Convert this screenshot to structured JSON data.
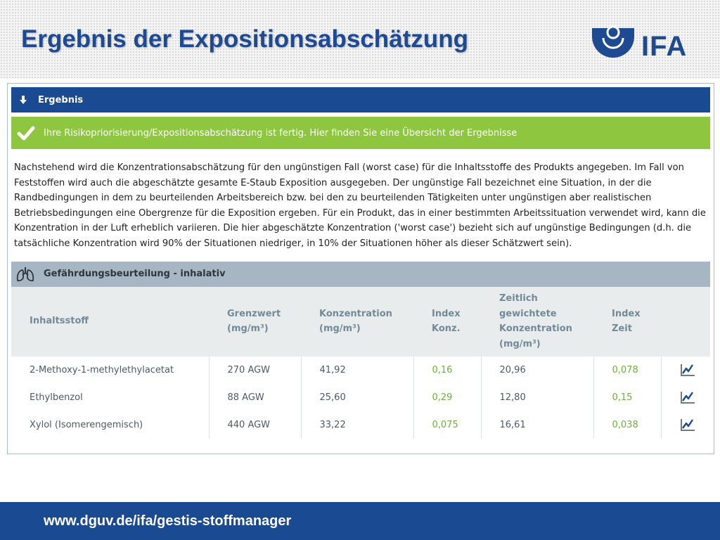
{
  "slide": {
    "title": "Ergebnis der Expositionsabschätzung",
    "logo_text": "IFA",
    "footer_url": "www.dguv.de/ifa/gestis-stoffmanager"
  },
  "app": {
    "section_title": "Ergebnis",
    "success_message": "Ihre Risikopriorisierung/Expositionsabschätzung ist fertig. Hier finden Sie eine Übersicht der Ergebnisse",
    "description": "Nachstehend wird die Konzentrationsabschätzung für den ungünstigen Fall (worst case) für die Inhaltsstoffe des Produkts angegeben. Im Fall von Feststoffen wird auch die abgeschätzte gesamte E-Staub Exposition ausgegeben. Der ungünstige Fall bezeichnet eine Situation, in der die Randbedingungen in dem zu beurteilenden Arbeitsbereich bzw. bei den zu beurteilenden Tätigkeiten unter ungünstigen aber realistischen Betriebsbedingungen eine Obergrenze für die Exposition ergeben. Für ein Produkt, das in einer bestimmten Arbeitssituation verwendet wird, kann die Konzentration in der Luft erheblich variieren. Die hier abgeschätzte Konzentration ('worst case') bezieht sich auf ungünstige Bedingungen (d.h. die tatsächliche Konzentration wird 90% der Situationen niedriger, in 10% der Situationen höher als dieser Schätzwert sein).",
    "subsection_title": "Gefährdungsbeurteilung - inhalativ",
    "table": {
      "headers": {
        "substance": "Inhaltsstoff",
        "limit_l1": "Grenzwert",
        "limit_l2": "(mg/m³)",
        "conc_l1": "Konzentration",
        "conc_l2": "(mg/m³)",
        "index_conc_l1": "Index",
        "index_conc_l2": "Konz.",
        "twa_l1": "Zeitlich",
        "twa_l2": "gewichtete",
        "twa_l3": "Konzentration",
        "twa_l4": "(mg/m³)",
        "index_time_l1": "Index",
        "index_time_l2": "Zeit"
      },
      "rows": [
        {
          "substance": "2-Methoxy-1-methylethylacetat",
          "limit": "270 AGW",
          "conc": "41,92",
          "index_conc": "0,16",
          "twa": "20,96",
          "index_time": "0,078"
        },
        {
          "substance": "Ethylbenzol",
          "limit": "88 AGW",
          "conc": "25,60",
          "index_conc": "0,29",
          "twa": "12,80",
          "index_time": "0,15"
        },
        {
          "substance": "Xylol (Isomerengemisch)",
          "limit": "440 AGW",
          "conc": "33,22",
          "index_conc": "0,075",
          "twa": "16,61",
          "index_time": "0,038"
        }
      ]
    }
  },
  "colors": {
    "brand_blue": "#1a4a92",
    "success_green": "#8ec63f",
    "index_green": "#6cb33a",
    "subsection_gray": "#a7b6c3"
  },
  "icons": {
    "section": "arrow-down-icon",
    "success": "checkmark-icon",
    "subsection": "lungs-icon",
    "row_action": "line-chart-icon"
  }
}
